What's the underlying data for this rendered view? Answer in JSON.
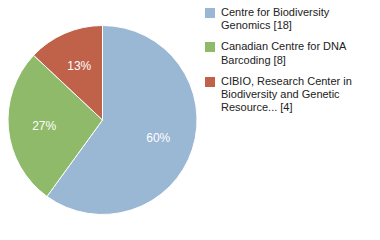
{
  "chart_data": {
    "type": "pie",
    "categories": [
      "Centre for Biodiversity\nGenomics [18]",
      "Canadian Centre for DNA\nBarcoding [8]",
      "CIBIO, Research Center in\nBiodiversity and Genetic\nResource... [4]"
    ],
    "values": [
      60,
      27,
      13
    ],
    "value_labels": [
      "60%",
      "27%",
      "13%"
    ],
    "colors": [
      "#9ab7d3",
      "#8fba6a",
      "#c0614a"
    ],
    "data_labels": true,
    "legend": "right"
  }
}
